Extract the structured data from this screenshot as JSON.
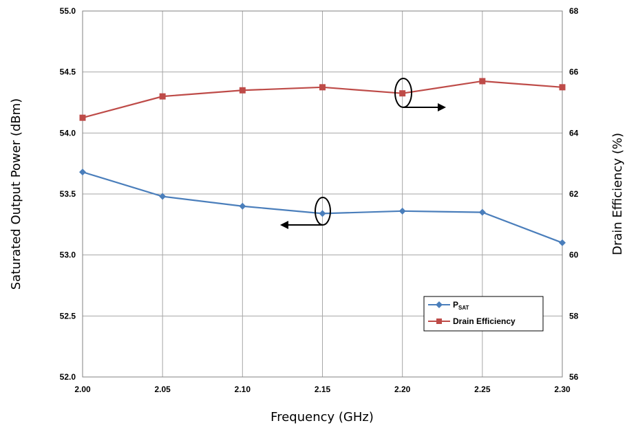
{
  "chart_data": {
    "type": "line",
    "title": "",
    "xlabel": "Frequency (GHz)",
    "ylabel_left": "Saturated Output Power (dBm)",
    "ylabel_right": "Drain Efficiency (%)",
    "x": [
      2.0,
      2.05,
      2.1,
      2.15,
      2.2,
      2.25,
      2.3
    ],
    "x_ticks": [
      "2.00",
      "2.05",
      "2.10",
      "2.15",
      "2.20",
      "2.25",
      "2.30"
    ],
    "xlim": [
      2.0,
      2.3
    ],
    "ylim_left": [
      52.0,
      55.0
    ],
    "y_ticks_left": [
      "52.0",
      "52.5",
      "53.0",
      "53.5",
      "54.0",
      "54.5",
      "55.0"
    ],
    "ylim_right": [
      56,
      68
    ],
    "y_ticks_right": [
      "56",
      "58",
      "60",
      "62",
      "64",
      "66",
      "68"
    ],
    "grid": true,
    "legend_position": "bottom-right",
    "series": [
      {
        "name_main": "P",
        "name_sub": "SAT",
        "axis": "left",
        "color": "#4a7ebb",
        "marker": "diamond",
        "values": [
          53.68,
          53.48,
          53.4,
          53.34,
          53.36,
          53.35,
          53.1
        ]
      },
      {
        "name": "Drain Efficiency",
        "axis": "right",
        "color": "#be4b48",
        "marker": "square",
        "values": [
          64.5,
          65.2,
          65.4,
          65.5,
          65.3,
          65.7,
          65.5
        ]
      }
    ]
  }
}
